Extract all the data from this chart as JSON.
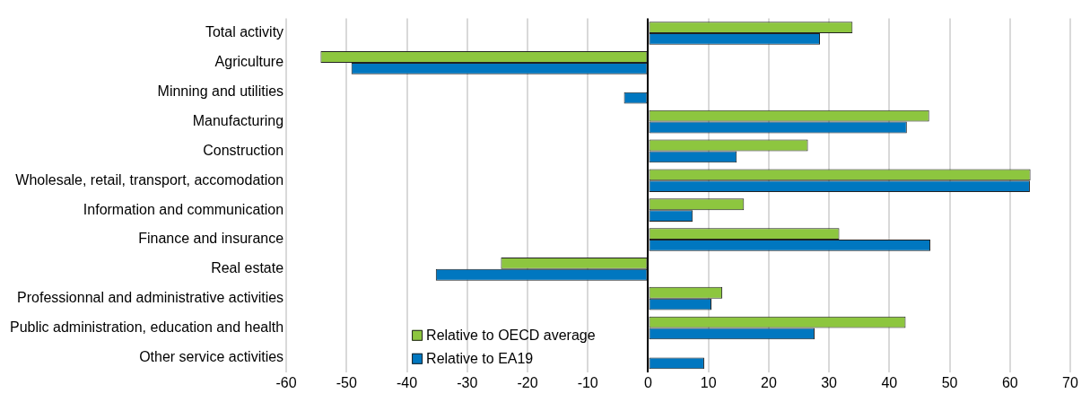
{
  "chart_data": {
    "type": "bar",
    "orientation": "horizontal",
    "categories": [
      "Total activity",
      "Agriculture",
      "Minning and utilities",
      "Manufacturing",
      "Construction",
      "Wholesale, retail, transport, accomodation",
      "Information and communication",
      "Finance and insurance",
      "Real estate",
      "Professionnal and administrative activities",
      "Public administration, education and health",
      "Other service activities"
    ],
    "series": [
      {
        "name": "Relative to OECD average",
        "color": "#8dc63f",
        "values": [
          33.9,
          -54.3,
          null,
          46.6,
          26.5,
          63.4,
          15.9,
          31.7,
          -24.4,
          12.3,
          42.7,
          null
        ]
      },
      {
        "name": "Relative to EA19",
        "color": "#0077c0",
        "values": [
          28.5,
          -49.2,
          -4.0,
          42.9,
          14.7,
          63.3,
          7.4,
          46.8,
          -35.2,
          10.5,
          27.6,
          9.3
        ]
      }
    ],
    "xlim": [
      -60,
      70
    ],
    "xticks": [
      -60,
      -50,
      -40,
      -30,
      -20,
      -10,
      0,
      10,
      20,
      30,
      40,
      50,
      60,
      70
    ],
    "grid": "x",
    "legend": "bottom left"
  }
}
